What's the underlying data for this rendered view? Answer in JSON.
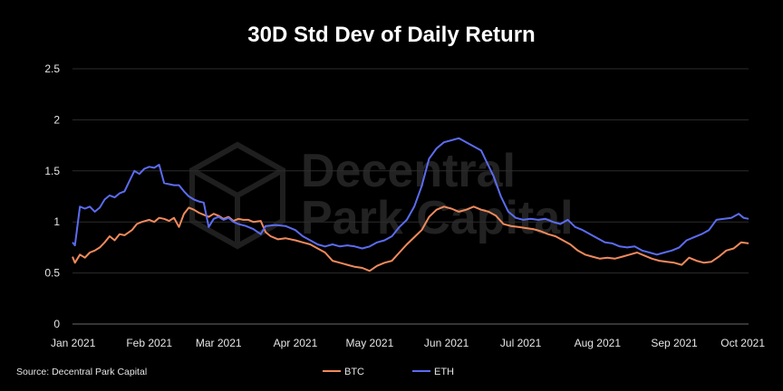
{
  "chart_data": {
    "type": "line",
    "title": "30D Std Dev of Daily Return",
    "xlabel": "",
    "ylabel": "",
    "ylim": [
      0,
      2.5
    ],
    "yticks": [
      "0",
      "0.5",
      "1",
      "1.5",
      "2",
      "2.5"
    ],
    "xlim": [
      "2021-01-01",
      "2021-10-01"
    ],
    "xticks": [
      {
        "date": "2021-01-01",
        "label": "Jan 2021"
      },
      {
        "date": "2021-02-01",
        "label": "Feb 2021"
      },
      {
        "date": "2021-03-01",
        "label": "Mar 2021"
      },
      {
        "date": "2021-04-01",
        "label": "Apr 2021"
      },
      {
        "date": "2021-05-01",
        "label": "May 2021"
      },
      {
        "date": "2021-06-01",
        "label": "Jun 2021"
      },
      {
        "date": "2021-07-01",
        "label": "Jul 2021"
      },
      {
        "date": "2021-08-01",
        "label": "Aug 2021"
      },
      {
        "date": "2021-09-01",
        "label": "Sep 2021"
      },
      {
        "date": "2021-10-01",
        "label": "Oct 2021"
      }
    ],
    "grid": "horizontal",
    "legend": "bottom-center",
    "source": "Source: Decentral Park Capital",
    "watermark": [
      "Decentral",
      "Park Capital"
    ],
    "series": [
      {
        "name": "BTC",
        "color": "#f08a5d",
        "points": [
          [
            "2021-01-01",
            0.66
          ],
          [
            "2021-01-02",
            0.6
          ],
          [
            "2021-01-04",
            0.68
          ],
          [
            "2021-01-06",
            0.65
          ],
          [
            "2021-01-08",
            0.7
          ],
          [
            "2021-01-10",
            0.72
          ],
          [
            "2021-01-12",
            0.75
          ],
          [
            "2021-01-14",
            0.8
          ],
          [
            "2021-01-16",
            0.86
          ],
          [
            "2021-01-18",
            0.82
          ],
          [
            "2021-01-20",
            0.88
          ],
          [
            "2021-01-22",
            0.87
          ],
          [
            "2021-01-25",
            0.92
          ],
          [
            "2021-01-27",
            0.98
          ],
          [
            "2021-01-29",
            1.0
          ],
          [
            "2021-02-01",
            1.02
          ],
          [
            "2021-02-03",
            1.0
          ],
          [
            "2021-02-05",
            1.04
          ],
          [
            "2021-02-07",
            1.03
          ],
          [
            "2021-02-09",
            1.01
          ],
          [
            "2021-02-11",
            1.04
          ],
          [
            "2021-02-13",
            0.95
          ],
          [
            "2021-02-15",
            1.08
          ],
          [
            "2021-02-17",
            1.14
          ],
          [
            "2021-02-19",
            1.12
          ],
          [
            "2021-02-21",
            1.09
          ],
          [
            "2021-02-23",
            1.07
          ],
          [
            "2021-02-25",
            1.05
          ],
          [
            "2021-02-27",
            1.08
          ],
          [
            "2021-03-01",
            1.06
          ],
          [
            "2021-03-03",
            1.03
          ],
          [
            "2021-03-05",
            1.05
          ],
          [
            "2021-03-07",
            1.01
          ],
          [
            "2021-03-09",
            1.03
          ],
          [
            "2021-03-11",
            1.02
          ],
          [
            "2021-03-13",
            1.02
          ],
          [
            "2021-03-15",
            1.0
          ],
          [
            "2021-03-18",
            1.01
          ],
          [
            "2021-03-20",
            0.9
          ],
          [
            "2021-03-22",
            0.86
          ],
          [
            "2021-03-25",
            0.83
          ],
          [
            "2021-03-28",
            0.84
          ],
          [
            "2021-04-01",
            0.82
          ],
          [
            "2021-04-04",
            0.8
          ],
          [
            "2021-04-07",
            0.78
          ],
          [
            "2021-04-10",
            0.74
          ],
          [
            "2021-04-13",
            0.7
          ],
          [
            "2021-04-16",
            0.62
          ],
          [
            "2021-04-19",
            0.6
          ],
          [
            "2021-04-22",
            0.58
          ],
          [
            "2021-04-25",
            0.56
          ],
          [
            "2021-04-28",
            0.55
          ],
          [
            "2021-05-01",
            0.52
          ],
          [
            "2021-05-04",
            0.57
          ],
          [
            "2021-05-07",
            0.6
          ],
          [
            "2021-05-10",
            0.62
          ],
          [
            "2021-05-13",
            0.7
          ],
          [
            "2021-05-16",
            0.78
          ],
          [
            "2021-05-19",
            0.85
          ],
          [
            "2021-05-22",
            0.92
          ],
          [
            "2021-05-25",
            1.05
          ],
          [
            "2021-05-28",
            1.12
          ],
          [
            "2021-05-31",
            1.15
          ],
          [
            "2021-06-03",
            1.13
          ],
          [
            "2021-06-06",
            1.1
          ],
          [
            "2021-06-09",
            1.12
          ],
          [
            "2021-06-12",
            1.15
          ],
          [
            "2021-06-15",
            1.12
          ],
          [
            "2021-06-18",
            1.1
          ],
          [
            "2021-06-21",
            1.06
          ],
          [
            "2021-06-24",
            0.98
          ],
          [
            "2021-06-27",
            0.96
          ],
          [
            "2021-06-30",
            0.95
          ],
          [
            "2021-07-03",
            0.94
          ],
          [
            "2021-07-06",
            0.93
          ],
          [
            "2021-07-09",
            0.91
          ],
          [
            "2021-07-12",
            0.88
          ],
          [
            "2021-07-15",
            0.86
          ],
          [
            "2021-07-18",
            0.82
          ],
          [
            "2021-07-21",
            0.78
          ],
          [
            "2021-07-24",
            0.72
          ],
          [
            "2021-07-27",
            0.68
          ],
          [
            "2021-07-30",
            0.66
          ],
          [
            "2021-08-02",
            0.64
          ],
          [
            "2021-08-05",
            0.65
          ],
          [
            "2021-08-08",
            0.64
          ],
          [
            "2021-08-11",
            0.66
          ],
          [
            "2021-08-14",
            0.68
          ],
          [
            "2021-08-17",
            0.7
          ],
          [
            "2021-08-20",
            0.67
          ],
          [
            "2021-08-23",
            0.64
          ],
          [
            "2021-08-26",
            0.62
          ],
          [
            "2021-08-29",
            0.61
          ],
          [
            "2021-09-01",
            0.6
          ],
          [
            "2021-09-04",
            0.58
          ],
          [
            "2021-09-07",
            0.65
          ],
          [
            "2021-09-10",
            0.62
          ],
          [
            "2021-09-13",
            0.6
          ],
          [
            "2021-09-16",
            0.61
          ],
          [
            "2021-09-19",
            0.66
          ],
          [
            "2021-09-22",
            0.72
          ],
          [
            "2021-09-25",
            0.74
          ],
          [
            "2021-09-28",
            0.8
          ],
          [
            "2021-10-01",
            0.79
          ]
        ]
      },
      {
        "name": "ETH",
        "color": "#5b6cf0",
        "points": [
          [
            "2021-01-01",
            0.8
          ],
          [
            "2021-01-02",
            0.77
          ],
          [
            "2021-01-04",
            1.15
          ],
          [
            "2021-01-06",
            1.13
          ],
          [
            "2021-01-08",
            1.15
          ],
          [
            "2021-01-10",
            1.1
          ],
          [
            "2021-01-12",
            1.14
          ],
          [
            "2021-01-14",
            1.22
          ],
          [
            "2021-01-16",
            1.26
          ],
          [
            "2021-01-18",
            1.24
          ],
          [
            "2021-01-20",
            1.28
          ],
          [
            "2021-01-22",
            1.3
          ],
          [
            "2021-01-24",
            1.4
          ],
          [
            "2021-01-26",
            1.5
          ],
          [
            "2021-01-28",
            1.47
          ],
          [
            "2021-01-30",
            1.52
          ],
          [
            "2021-02-01",
            1.54
          ],
          [
            "2021-02-03",
            1.53
          ],
          [
            "2021-02-05",
            1.56
          ],
          [
            "2021-02-07",
            1.38
          ],
          [
            "2021-02-09",
            1.37
          ],
          [
            "2021-02-11",
            1.36
          ],
          [
            "2021-02-13",
            1.36
          ],
          [
            "2021-02-15",
            1.3
          ],
          [
            "2021-02-17",
            1.25
          ],
          [
            "2021-02-19",
            1.22
          ],
          [
            "2021-02-21",
            1.2
          ],
          [
            "2021-02-23",
            1.19
          ],
          [
            "2021-02-25",
            0.95
          ],
          [
            "2021-02-27",
            1.03
          ],
          [
            "2021-03-01",
            1.05
          ],
          [
            "2021-03-03",
            1.02
          ],
          [
            "2021-03-05",
            1.04
          ],
          [
            "2021-03-07",
            1.0
          ],
          [
            "2021-03-09",
            0.98
          ],
          [
            "2021-03-12",
            0.96
          ],
          [
            "2021-03-15",
            0.93
          ],
          [
            "2021-03-18",
            0.88
          ],
          [
            "2021-03-20",
            0.96
          ],
          [
            "2021-03-24",
            0.97
          ],
          [
            "2021-03-28",
            0.96
          ],
          [
            "2021-04-01",
            0.92
          ],
          [
            "2021-04-04",
            0.86
          ],
          [
            "2021-04-07",
            0.82
          ],
          [
            "2021-04-10",
            0.78
          ],
          [
            "2021-04-13",
            0.76
          ],
          [
            "2021-04-16",
            0.78
          ],
          [
            "2021-04-19",
            0.76
          ],
          [
            "2021-04-22",
            0.77
          ],
          [
            "2021-04-25",
            0.76
          ],
          [
            "2021-04-28",
            0.74
          ],
          [
            "2021-05-01",
            0.76
          ],
          [
            "2021-05-04",
            0.8
          ],
          [
            "2021-05-07",
            0.82
          ],
          [
            "2021-05-10",
            0.86
          ],
          [
            "2021-05-13",
            0.95
          ],
          [
            "2021-05-16",
            1.02
          ],
          [
            "2021-05-19",
            1.15
          ],
          [
            "2021-05-22",
            1.35
          ],
          [
            "2021-05-25",
            1.62
          ],
          [
            "2021-05-28",
            1.72
          ],
          [
            "2021-05-31",
            1.78
          ],
          [
            "2021-06-03",
            1.8
          ],
          [
            "2021-06-06",
            1.82
          ],
          [
            "2021-06-09",
            1.78
          ],
          [
            "2021-06-12",
            1.74
          ],
          [
            "2021-06-15",
            1.7
          ],
          [
            "2021-06-17",
            1.6
          ],
          [
            "2021-06-20",
            1.45
          ],
          [
            "2021-06-23",
            1.25
          ],
          [
            "2021-06-26",
            1.1
          ],
          [
            "2021-06-29",
            1.04
          ],
          [
            "2021-07-02",
            1.02
          ],
          [
            "2021-07-05",
            1.03
          ],
          [
            "2021-07-08",
            1.02
          ],
          [
            "2021-07-11",
            1.03
          ],
          [
            "2021-07-14",
            1.0
          ],
          [
            "2021-07-17",
            0.98
          ],
          [
            "2021-07-20",
            1.02
          ],
          [
            "2021-07-23",
            0.95
          ],
          [
            "2021-07-26",
            0.92
          ],
          [
            "2021-07-29",
            0.88
          ],
          [
            "2021-08-01",
            0.84
          ],
          [
            "2021-08-04",
            0.8
          ],
          [
            "2021-08-07",
            0.79
          ],
          [
            "2021-08-10",
            0.76
          ],
          [
            "2021-08-13",
            0.75
          ],
          [
            "2021-08-16",
            0.76
          ],
          [
            "2021-08-19",
            0.72
          ],
          [
            "2021-08-22",
            0.7
          ],
          [
            "2021-08-25",
            0.68
          ],
          [
            "2021-08-28",
            0.7
          ],
          [
            "2021-08-31",
            0.72
          ],
          [
            "2021-09-03",
            0.75
          ],
          [
            "2021-09-06",
            0.82
          ],
          [
            "2021-09-09",
            0.85
          ],
          [
            "2021-09-12",
            0.88
          ],
          [
            "2021-09-15",
            0.92
          ],
          [
            "2021-09-18",
            1.02
          ],
          [
            "2021-09-21",
            1.03
          ],
          [
            "2021-09-24",
            1.04
          ],
          [
            "2021-09-27",
            1.08
          ],
          [
            "2021-09-29",
            1.04
          ],
          [
            "2021-10-01",
            1.03
          ]
        ]
      }
    ]
  }
}
